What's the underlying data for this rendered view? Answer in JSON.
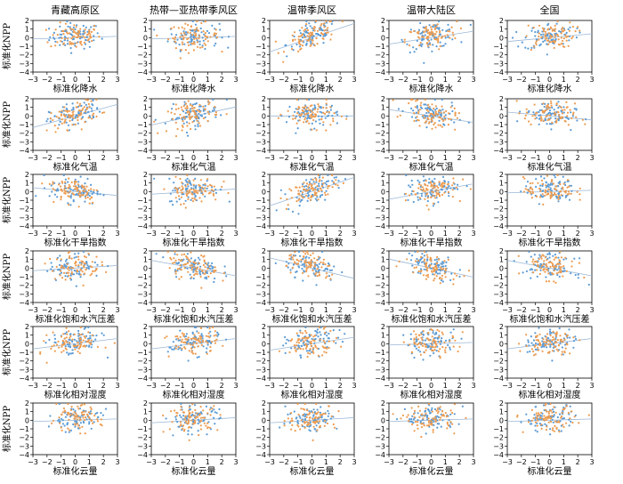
{
  "figure": {
    "column_titles": [
      "青藏高原区",
      "热带—亚热带季风区",
      "温带季风区",
      "温带大陆区",
      "全国"
    ],
    "row_xlabels": [
      "标准化降水",
      "标准化气温",
      "标准化干旱指数",
      "标准化饱和水汽压差",
      "标准化相对湿度",
      "标准化云量"
    ],
    "ylabel": "标准化NPP",
    "colors": {
      "series_a": "#5b9bd5",
      "series_b": "#ed9c50",
      "fit_line": "#9bb8d6",
      "axis": "#000000"
    }
  },
  "chart_data": {
    "type": "scatter",
    "layout_grid": [
      6,
      5
    ],
    "xlim": [
      -3,
      3
    ],
    "ylim": [
      -4,
      2
    ],
    "xticks": [
      -3,
      -2,
      -1,
      0,
      1,
      2,
      3
    ],
    "yticks": [
      -4,
      -3,
      -2,
      -1,
      0,
      1,
      2
    ],
    "slopes": [
      [
        0.05,
        0.05,
        0.55,
        0.25,
        0.15
      ],
      [
        0.45,
        0.35,
        0.0,
        -0.25,
        -0.15
      ],
      [
        -0.15,
        0.1,
        0.55,
        0.3,
        0.05
      ],
      [
        0.1,
        -0.3,
        -0.4,
        -0.35,
        -0.3
      ],
      [
        0.2,
        0.2,
        0.25,
        0.05,
        0.2
      ],
      [
        0.05,
        0.1,
        0.1,
        0.05,
        0.05
      ]
    ],
    "points_per_series": 80
  }
}
